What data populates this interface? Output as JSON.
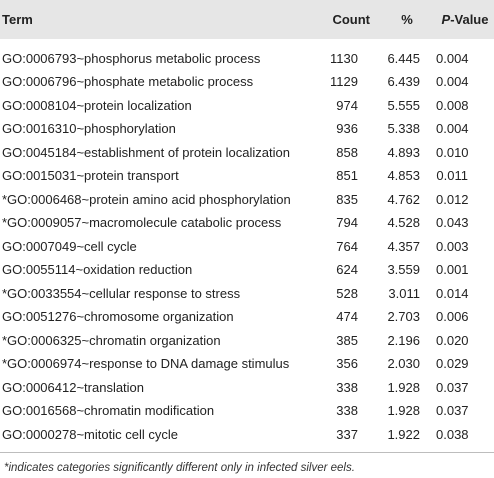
{
  "table": {
    "headers": {
      "term": "Term",
      "count": "Count",
      "percent": "%",
      "pvalue_p": "P",
      "pvalue_rest": "-Value"
    },
    "rows": [
      {
        "term": "GO:0006793~phosphorus metabolic process",
        "count": "1130",
        "percent": "6.445",
        "pvalue": "0.004"
      },
      {
        "term": "GO:0006796~phosphate metabolic process",
        "count": "1129",
        "percent": "6.439",
        "pvalue": "0.004"
      },
      {
        "term": "GO:0008104~protein localization",
        "count": "974",
        "percent": "5.555",
        "pvalue": "0.008"
      },
      {
        "term": "GO:0016310~phosphorylation",
        "count": "936",
        "percent": "5.338",
        "pvalue": "0.004"
      },
      {
        "term": "GO:0045184~establishment of protein localization",
        "count": "858",
        "percent": "4.893",
        "pvalue": "0.010"
      },
      {
        "term": "GO:0015031~protein transport",
        "count": "851",
        "percent": "4.853",
        "pvalue": "0.011"
      },
      {
        "term": "*GO:0006468~protein amino acid phosphorylation",
        "count": "835",
        "percent": "4.762",
        "pvalue": "0.012"
      },
      {
        "term": "*GO:0009057~macromolecule catabolic process",
        "count": "794",
        "percent": "4.528",
        "pvalue": "0.043"
      },
      {
        "term": "GO:0007049~cell cycle",
        "count": "764",
        "percent": "4.357",
        "pvalue": "0.003"
      },
      {
        "term": "GO:0055114~oxidation reduction",
        "count": "624",
        "percent": "3.559",
        "pvalue": "0.001"
      },
      {
        "term": "*GO:0033554~cellular response to stress",
        "count": "528",
        "percent": "3.011",
        "pvalue": "0.014"
      },
      {
        "term": "GO:0051276~chromosome organization",
        "count": "474",
        "percent": "2.703",
        "pvalue": "0.006"
      },
      {
        "term": "*GO:0006325~chromatin organization",
        "count": "385",
        "percent": "2.196",
        "pvalue": "0.020"
      },
      {
        "term": "*GO:0006974~response to DNA damage stimulus",
        "count": "356",
        "percent": "2.030",
        "pvalue": "0.029"
      },
      {
        "term": "GO:0006412~translation",
        "count": "338",
        "percent": "1.928",
        "pvalue": "0.037"
      },
      {
        "term": "GO:0016568~chromatin modification",
        "count": "338",
        "percent": "1.928",
        "pvalue": "0.037"
      },
      {
        "term": "GO:0000278~mitotic cell cycle",
        "count": "337",
        "percent": "1.922",
        "pvalue": "0.038"
      }
    ],
    "footnote": "*indicates categories significantly different only in infected silver eels."
  },
  "colors": {
    "header_background": "#e6e6e6",
    "text": "#222222",
    "rule": "#bdbdbd"
  }
}
